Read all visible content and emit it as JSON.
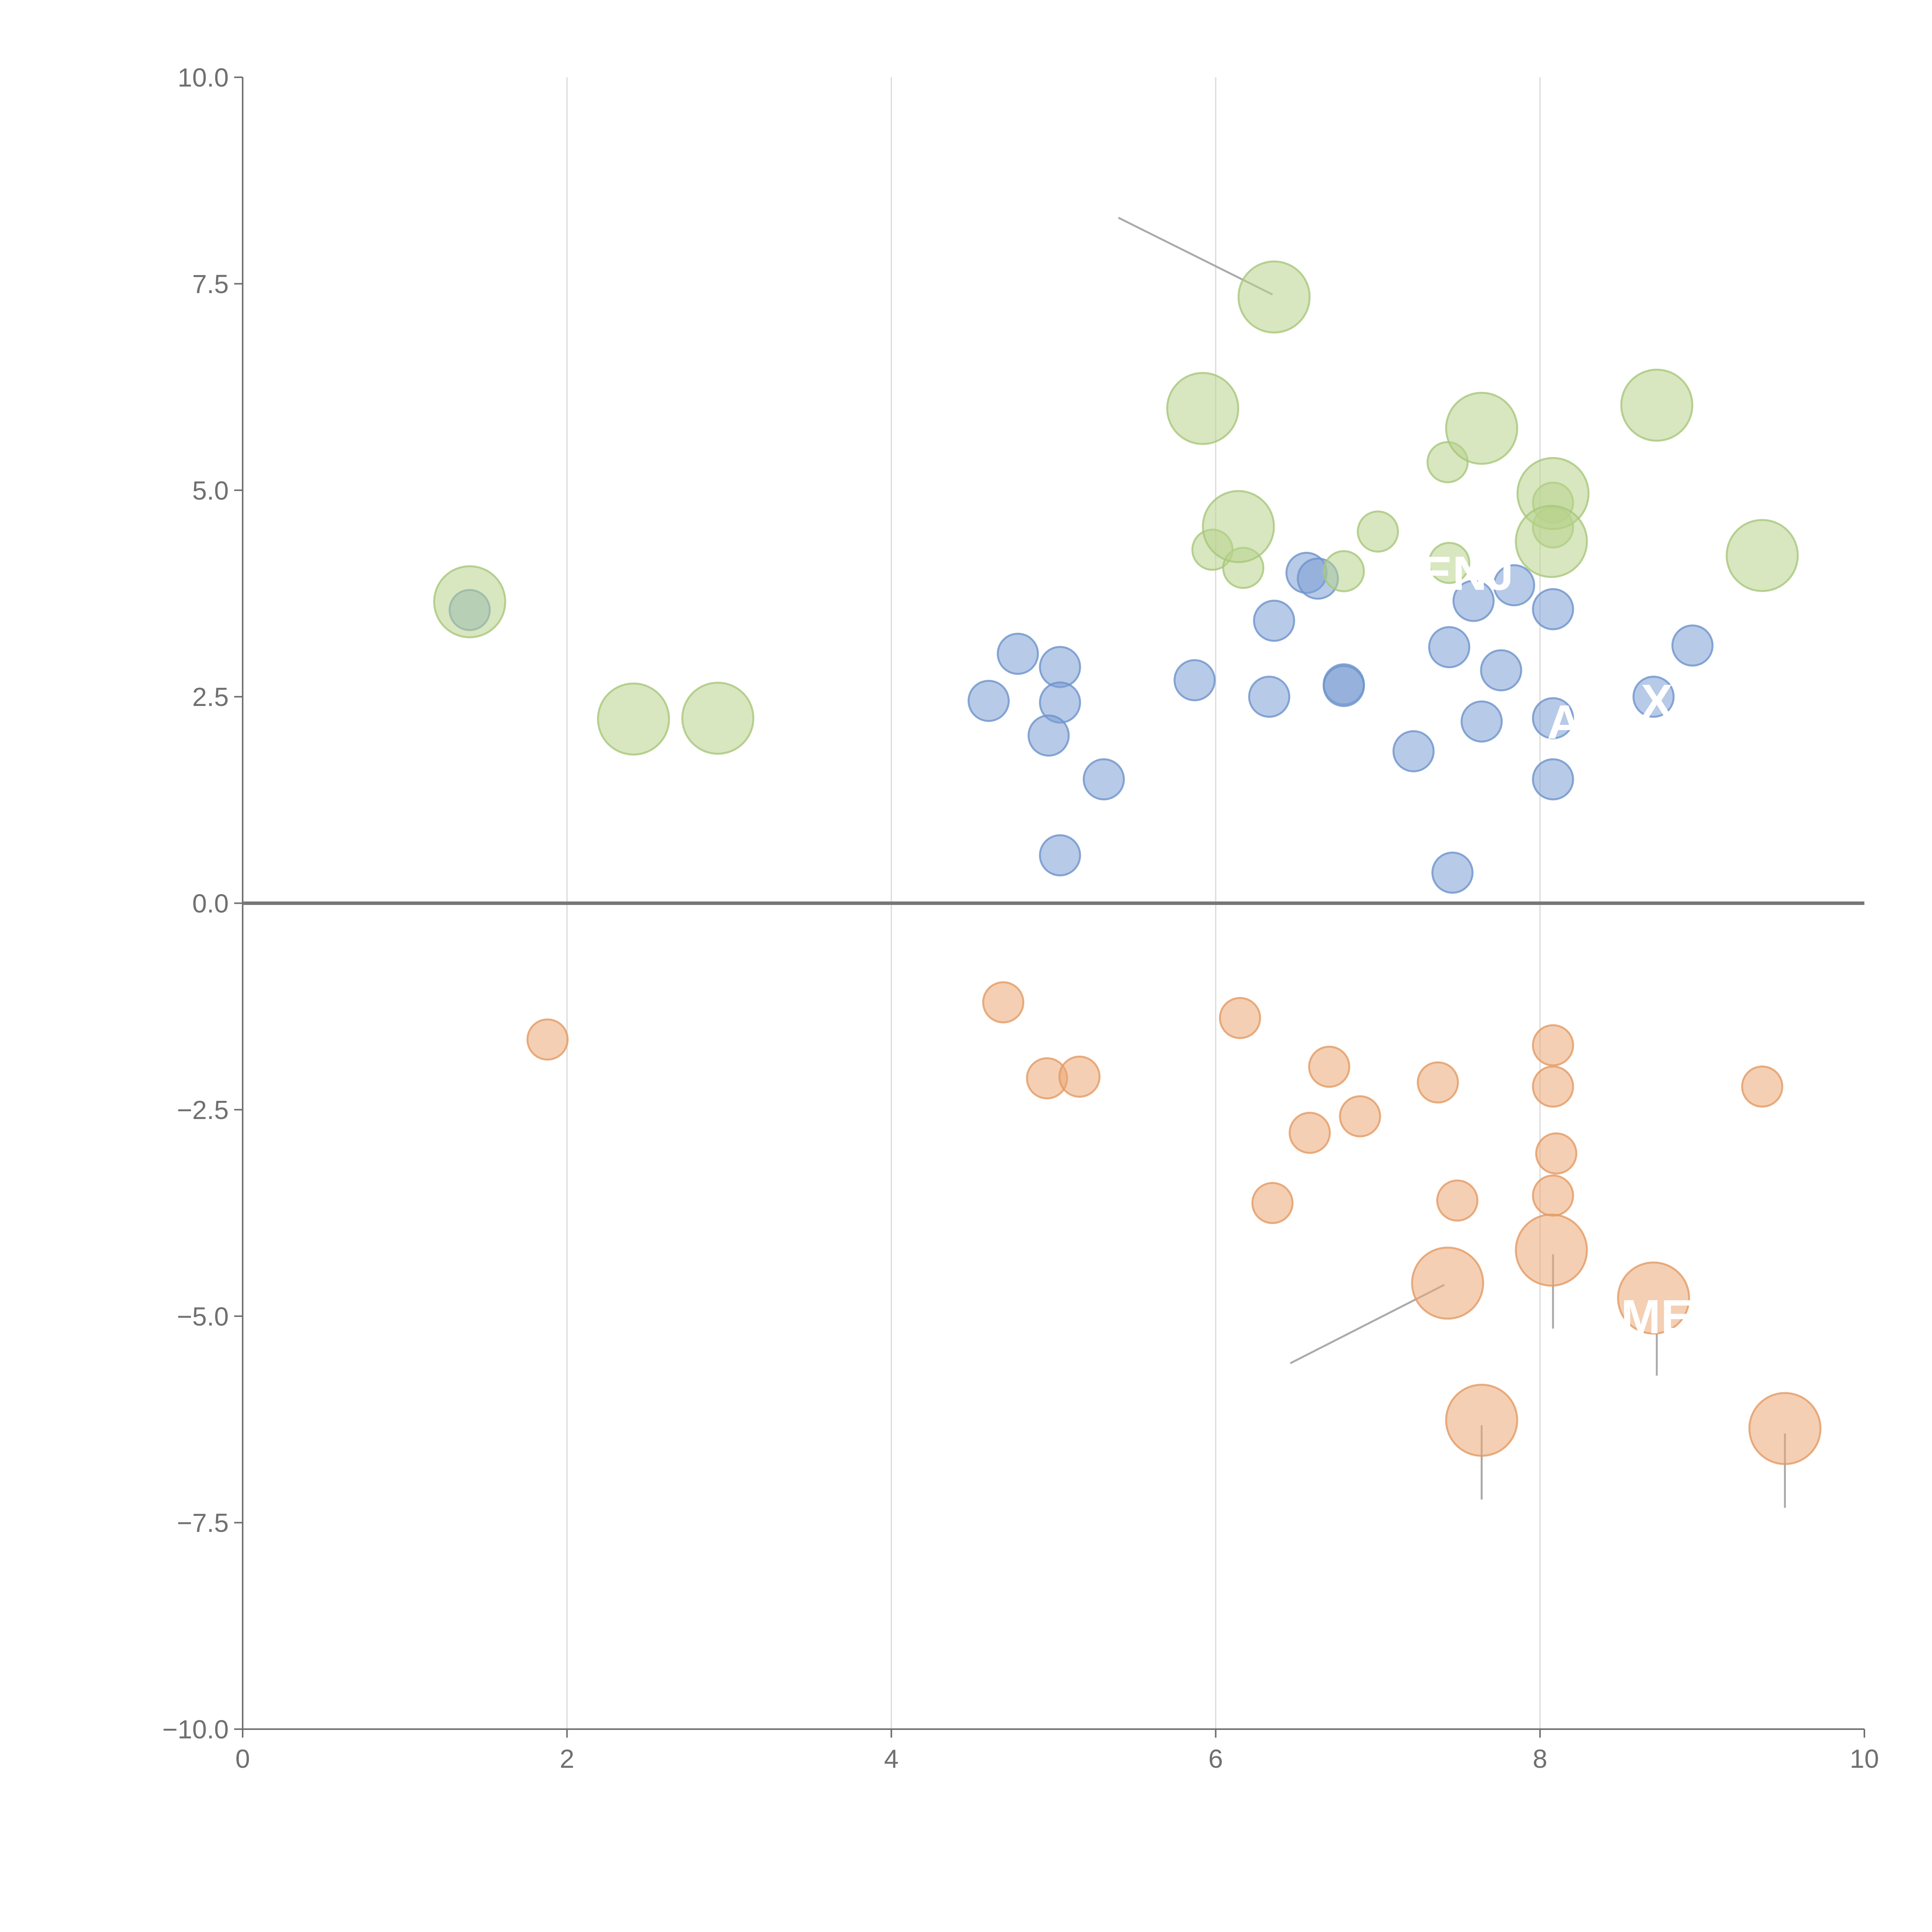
{
  "chart_data": {
    "type": "scatter",
    "title": "",
    "xlabel": "",
    "ylabel": "",
    "xlim": [
      0,
      10
    ],
    "ylim": [
      -10,
      10
    ],
    "grid": "vertical",
    "x_ticks": [
      "0",
      "2",
      "4",
      "6",
      "8",
      "10"
    ],
    "x_tick_values": [
      0,
      2,
      4,
      6,
      8,
      10
    ],
    "y_ticks": [
      "10.0",
      "7.5",
      "5.0",
      "2.5",
      "0.0",
      "−2.5",
      "−5.0",
      "−7.5",
      "−10.0"
    ],
    "y_tick_values": [
      10,
      7.5,
      5,
      2.5,
      0,
      -2.5,
      -5,
      -7.5,
      -10
    ],
    "colors": {
      "blue": "#7b9fd4",
      "blue_stroke": "#6d92cc",
      "orange": "#eba877",
      "orange_stroke": "#e39a63",
      "green": "#b8d48c",
      "green_stroke": "#a8c77a",
      "axis": "#707070",
      "grid": "#d9d9d9",
      "leader_gray": "#aaaaaa",
      "leader_white": "#ffffff"
    },
    "series": [
      {
        "name": "blue",
        "color_key": "blue",
        "size": 1,
        "points": [
          [
            1.4,
            3.55
          ],
          [
            4.6,
            2.45
          ],
          [
            4.78,
            3.02
          ],
          [
            5.04,
            2.86
          ],
          [
            5.04,
            2.43
          ],
          [
            4.97,
            2.03
          ],
          [
            5.31,
            1.5
          ],
          [
            5.04,
            0.58
          ],
          [
            5.87,
            2.7
          ],
          [
            6.33,
            2.5
          ],
          [
            6.36,
            3.42
          ],
          [
            6.56,
            4.0
          ],
          [
            6.63,
            3.93
          ],
          [
            6.79,
            2.65
          ],
          [
            6.79,
            2.63
          ],
          [
            7.22,
            1.84
          ],
          [
            7.44,
            3.1
          ],
          [
            7.46,
            0.37
          ],
          [
            7.59,
            3.66
          ],
          [
            7.64,
            2.2
          ],
          [
            7.76,
            2.82
          ],
          [
            7.84,
            3.85
          ],
          [
            8.08,
            3.56
          ],
          [
            8.08,
            2.24
          ],
          [
            8.08,
            1.5
          ],
          [
            8.7,
            2.5
          ],
          [
            8.94,
            3.12
          ]
        ]
      },
      {
        "name": "orange",
        "color_key": "orange",
        "size": 1,
        "points": [
          [
            1.88,
            -1.65
          ],
          [
            4.69,
            -1.2
          ],
          [
            4.96,
            -2.12
          ],
          [
            5.16,
            -2.1
          ],
          [
            6.15,
            -1.39
          ],
          [
            6.35,
            -3.63
          ],
          [
            6.58,
            -2.78
          ],
          [
            6.7,
            -1.98
          ],
          [
            6.89,
            -2.58
          ],
          [
            7.37,
            -2.17
          ],
          [
            7.49,
            -3.6
          ],
          [
            8.08,
            -1.72
          ],
          [
            8.08,
            -2.22
          ],
          [
            8.1,
            -3.03
          ],
          [
            8.08,
            -3.54
          ],
          [
            9.37,
            -2.22
          ]
        ]
      },
      {
        "name": "orange-large",
        "color_key": "orange",
        "size": 2,
        "points": [
          [
            7.43,
            -4.6
          ],
          [
            8.07,
            -4.2
          ],
          [
            8.7,
            -4.78
          ],
          [
            7.64,
            -6.26
          ],
          [
            9.51,
            -6.36
          ]
        ]
      },
      {
        "name": "green",
        "color_key": "green",
        "size": 1,
        "points": [
          [
            5.98,
            4.28
          ],
          [
            6.17,
            4.06
          ],
          [
            6.79,
            4.02
          ],
          [
            7.0,
            4.5
          ],
          [
            7.43,
            5.34
          ],
          [
            7.44,
            4.12
          ],
          [
            8.08,
            4.85
          ],
          [
            8.08,
            4.55
          ]
        ]
      },
      {
        "name": "green-large",
        "color_key": "green",
        "size": 2,
        "points": [
          [
            1.4,
            3.65
          ],
          [
            2.41,
            2.23
          ],
          [
            2.93,
            2.24
          ],
          [
            5.92,
            5.99
          ],
          [
            6.36,
            7.34
          ],
          [
            6.14,
            4.56
          ],
          [
            7.64,
            5.75
          ],
          [
            8.08,
            4.96
          ],
          [
            8.07,
            4.38
          ],
          [
            8.72,
            6.03
          ],
          [
            9.37,
            4.21
          ]
        ]
      }
    ],
    "annotations": [
      {
        "text": "ENJ",
        "x": 7.55,
        "y": 4.0
      },
      {
        "text": "A",
        "x": 8.15,
        "y": 2.2
      },
      {
        "text": "X",
        "x": 8.72,
        "y": 2.45
      },
      {
        "text": "ME",
        "x": 8.72,
        "y": -5.0
      }
    ],
    "leader_lines": [
      {
        "color_key": "leader_gray",
        "x1": 5.4,
        "y1": 8.3,
        "x2": 6.35,
        "y2": 7.37
      },
      {
        "color_key": "leader_gray",
        "x1": 6.46,
        "y1": -5.57,
        "x2": 7.41,
        "y2": -4.62
      },
      {
        "color_key": "leader_gray",
        "x1": 8.08,
        "y1": -4.25,
        "x2": 8.08,
        "y2": -5.15
      },
      {
        "color_key": "leader_gray",
        "x1": 8.72,
        "y1": -4.82,
        "x2": 8.72,
        "y2": -5.72
      },
      {
        "color_key": "leader_gray",
        "x1": 7.64,
        "y1": -6.32,
        "x2": 7.64,
        "y2": -7.22
      },
      {
        "color_key": "leader_gray",
        "x1": 9.51,
        "y1": -6.42,
        "x2": 9.51,
        "y2": -7.32
      },
      {
        "color_key": "leader_white",
        "x1": 2.22,
        "y1": 2.55,
        "x2": 2.38,
        "y2": 2.27
      },
      {
        "color_key": "leader_white",
        "x1": 3.12,
        "y1": 2.55,
        "x2": 2.98,
        "y2": 2.27
      },
      {
        "color_key": "leader_white",
        "x1": 5.88,
        "y1": 6.4,
        "x2": 5.93,
        "y2": 6.05
      },
      {
        "color_key": "leader_white",
        "x1": 6.0,
        "y1": 4.75,
        "x2": 6.12,
        "y2": 4.6
      },
      {
        "color_key": "leader_white",
        "x1": 7.74,
        "y1": 6.2,
        "x2": 7.66,
        "y2": 5.82
      },
      {
        "color_key": "leader_white",
        "x1": 8.0,
        "y1": 4.68,
        "x2": 8.06,
        "y2": 4.9
      },
      {
        "color_key": "leader_white",
        "x1": 8.05,
        "y1": 4.33,
        "x2": 8.12,
        "y2": 4.0
      },
      {
        "color_key": "leader_white",
        "x1": 8.84,
        "y1": 6.32,
        "x2": 8.75,
        "y2": 6.08
      },
      {
        "color_key": "leader_white",
        "x1": 9.37,
        "y1": 4.62,
        "x2": 9.37,
        "y2": 4.27
      }
    ]
  }
}
